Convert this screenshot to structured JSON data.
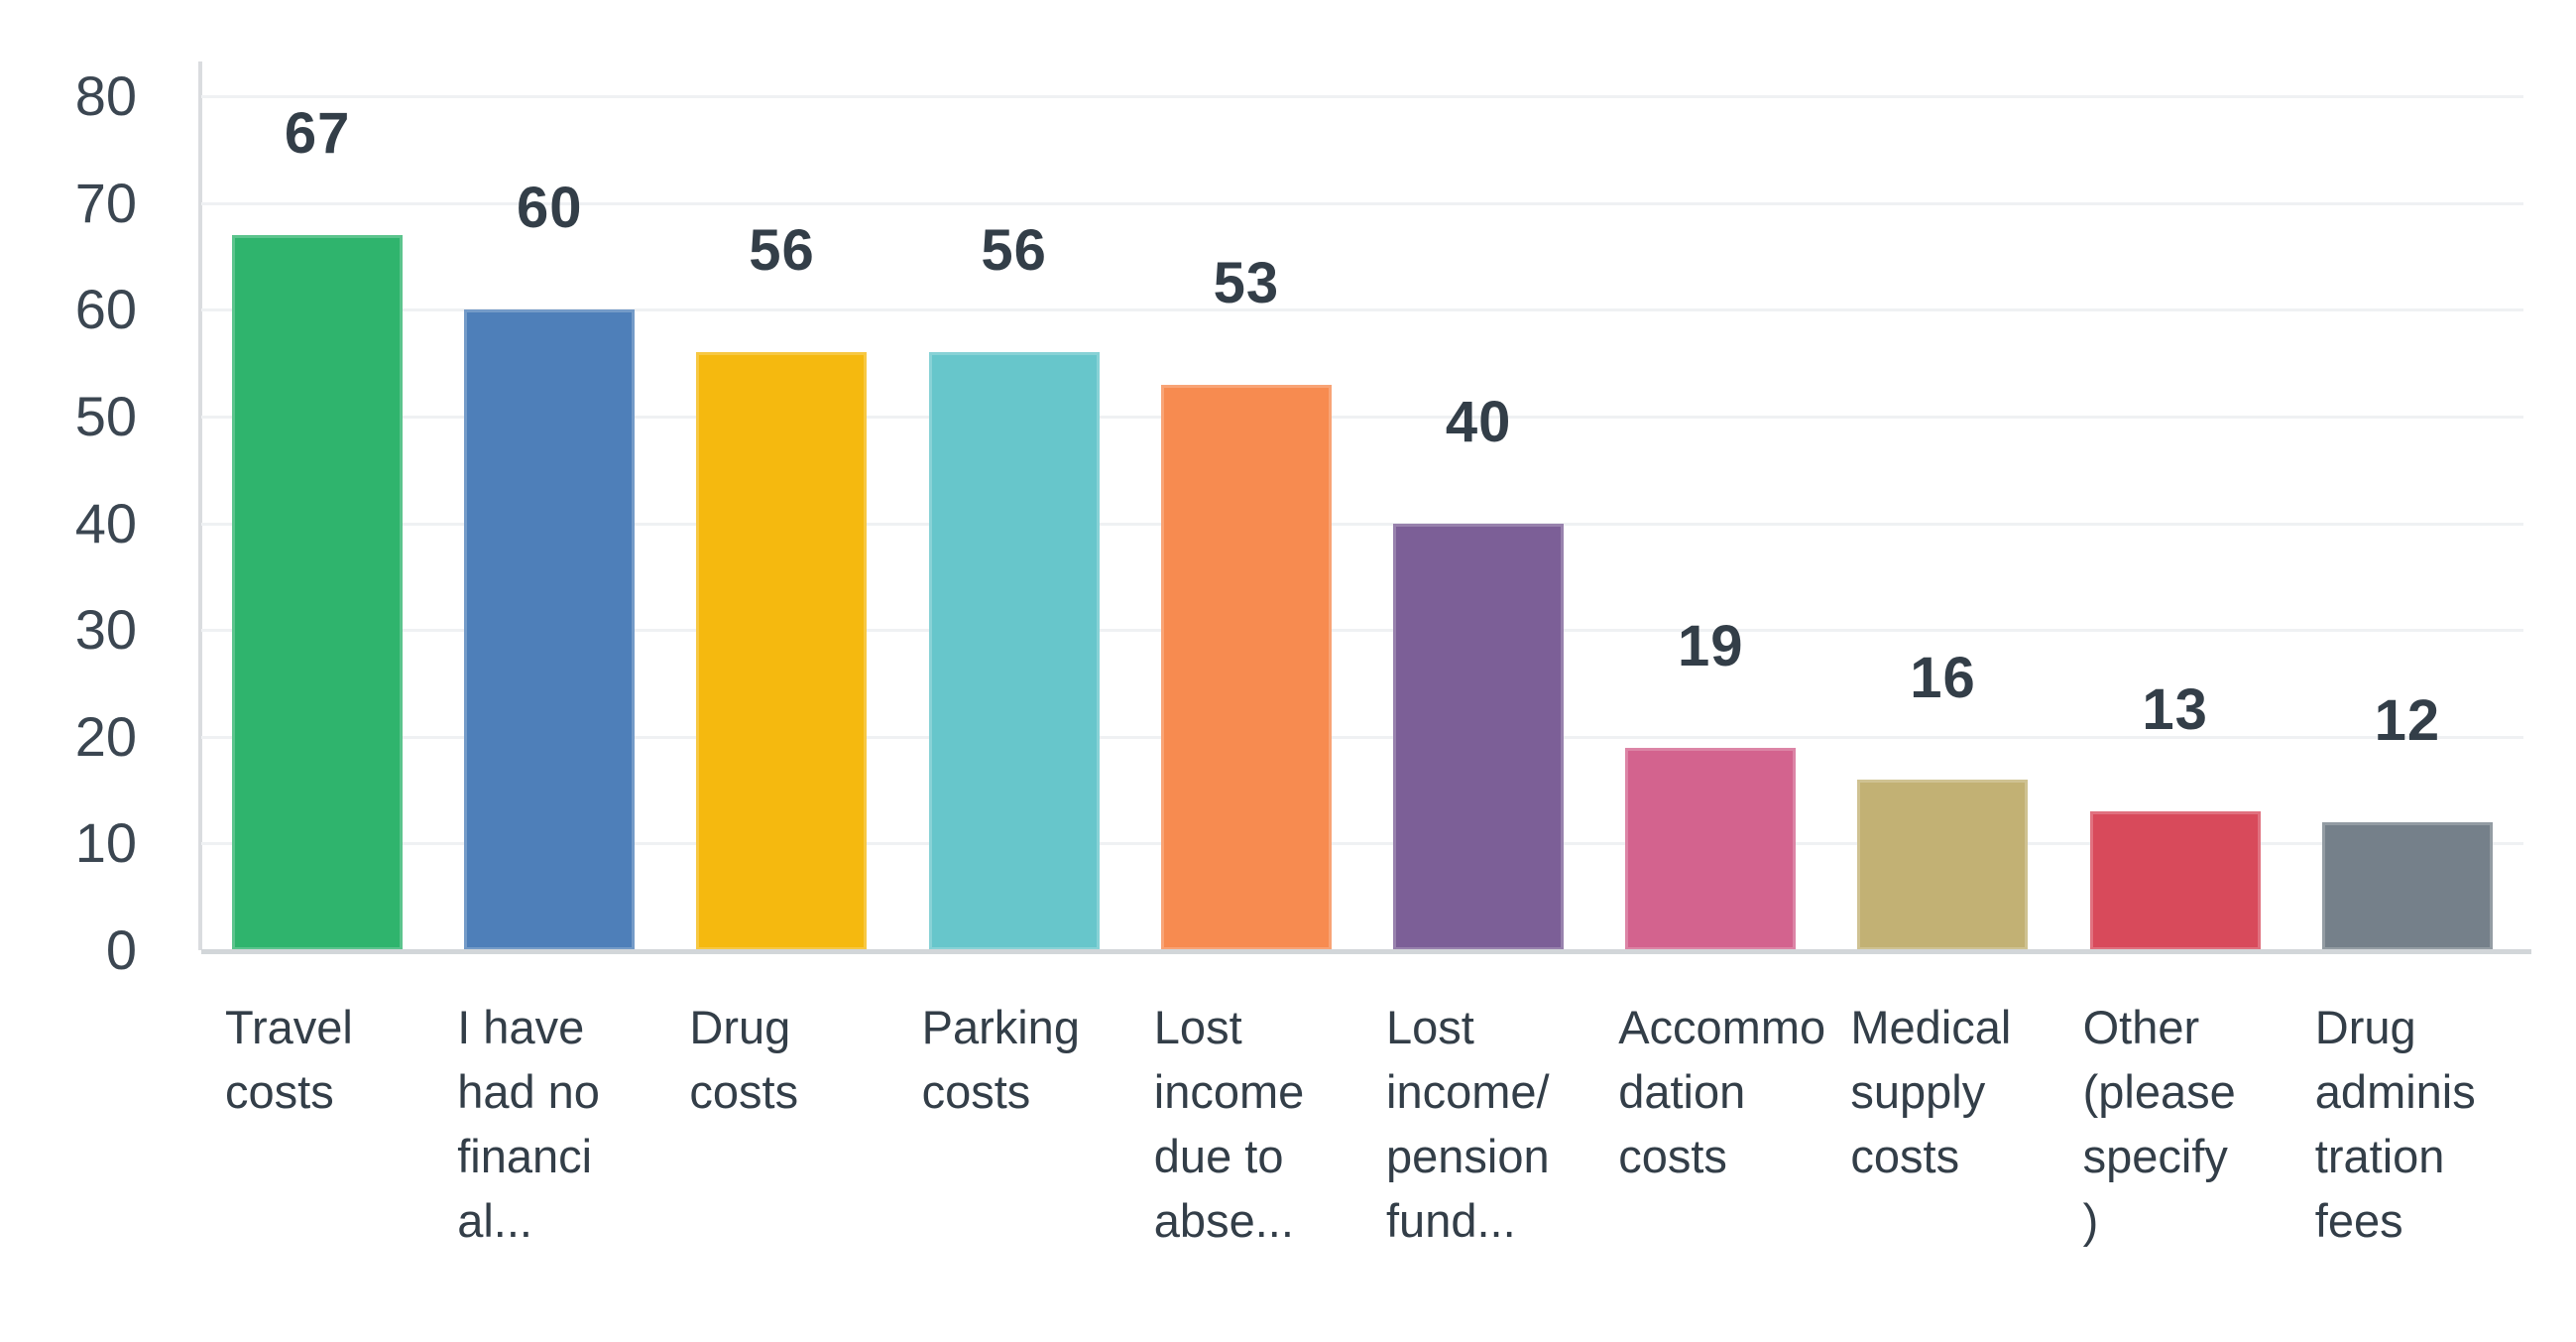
{
  "chart_data": {
    "type": "bar",
    "title": "",
    "xlabel": "",
    "ylabel": "",
    "legend_position": "none",
    "grid": true,
    "value_labels_shown": true,
    "ylim": [
      0,
      80
    ],
    "yticks": [
      0,
      10,
      20,
      30,
      40,
      50,
      60,
      70,
      80
    ],
    "categories": [
      "Travel costs",
      "I have had no financial...",
      "Drug costs",
      "Parking costs",
      "Lost income due to abse...",
      "Lost income/ pension fund...",
      "Accommodation costs",
      "Medical supply costs",
      "Other (please specify)",
      "Drug administration fees"
    ],
    "category_display_lines": [
      [
        "Travel",
        "costs"
      ],
      [
        "I have",
        "had no",
        "financi",
        "al..."
      ],
      [
        "Drug",
        "costs"
      ],
      [
        "Parking",
        "costs"
      ],
      [
        "Lost",
        "income",
        "due to",
        "abse..."
      ],
      [
        "Lost",
        "income/",
        "pension",
        "fund..."
      ],
      [
        "Accommo",
        "dation",
        "costs"
      ],
      [
        "Medical",
        "supply",
        "costs"
      ],
      [
        "Other",
        "(please",
        "specify",
        ")"
      ],
      [
        "Drug",
        "adminis",
        "tration",
        "fees"
      ]
    ],
    "values": [
      67,
      60,
      56,
      56,
      53,
      40,
      19,
      16,
      13,
      12
    ],
    "bar_colors": [
      "#2FB46D",
      "#4E7FB9",
      "#F5B90F",
      "#67C6CB",
      "#F78B50",
      "#7C5F97",
      "#D3638E",
      "#C2B174",
      "#D84A5B",
      "#75808A"
    ]
  },
  "colors": {
    "background": "#FFFFFF",
    "text": "#333E48",
    "tick_text": "#3B4651",
    "gridline": "#EFF1F3",
    "baseline": "#D2D6D9",
    "y_axis_line": "#DADCDF"
  }
}
